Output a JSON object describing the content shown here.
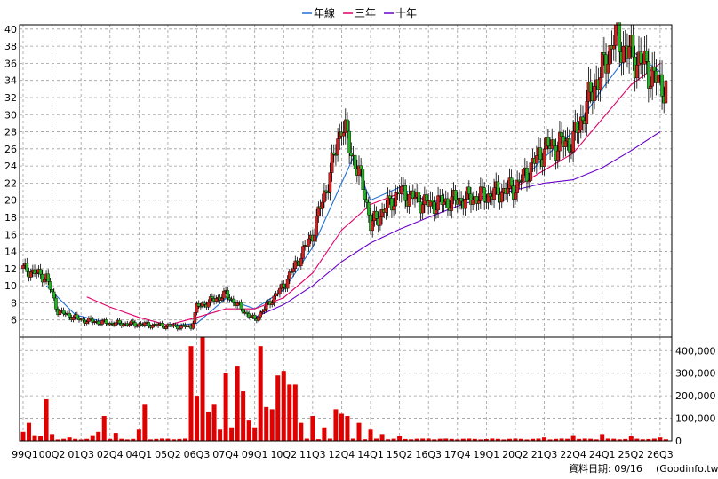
{
  "legend": [
    {
      "label": "年線",
      "color": "#1f6fd6"
    },
    {
      "label": "三年",
      "color": "#e0006a"
    },
    {
      "label": "十年",
      "color": "#6a00c8"
    }
  ],
  "footer": {
    "date_label": "資料日期: 09/16",
    "source": "(Goodinfo.tw)"
  },
  "colors": {
    "up": "#d21f1f",
    "down": "#22b422",
    "volume": "#e00000",
    "grid": "#9e9e9e",
    "frame": "#000000"
  },
  "chart_data": [
    {
      "type": "candlestick",
      "title": "",
      "x_tick_labels": [
        "99Q1",
        "00Q2",
        "01Q3",
        "02Q4",
        "04Q1",
        "05Q2",
        "06Q3",
        "07Q4",
        "09Q1",
        "10Q2",
        "11Q3",
        "12Q4",
        "14Q1",
        "15Q2",
        "16Q3",
        "17Q4",
        "19Q1",
        "20Q2",
        "21Q3",
        "22Q4",
        "24Q1",
        "25Q2",
        "26Q3"
      ],
      "y_ticks": [
        6,
        8,
        10,
        12,
        14,
        16,
        18,
        20,
        22,
        24,
        26,
        28,
        30,
        32,
        34,
        36,
        38,
        40
      ],
      "ylim": [
        4,
        40.5
      ],
      "grid": true,
      "legend_position": "top-center",
      "close_anchors": [
        {
          "x": "1999Q1",
          "close": 12
        },
        {
          "x": "2000Q1",
          "close": 11
        },
        {
          "x": "2000Q3",
          "close": 7
        },
        {
          "x": "2001Q3",
          "close": 6
        },
        {
          "x": "2002Q4",
          "close": 5.6
        },
        {
          "x": "2004Q1",
          "close": 5.5
        },
        {
          "x": "2005Q2",
          "close": 5.3
        },
        {
          "x": "2006Q2",
          "close": 5.2
        },
        {
          "x": "2006Q3",
          "close": 7.5
        },
        {
          "x": "2007Q4",
          "close": 9
        },
        {
          "x": "2008Q4",
          "close": 6.5
        },
        {
          "x": "2009Q1",
          "close": 6
        },
        {
          "x": "2010Q2",
          "close": 10
        },
        {
          "x": "2011Q3",
          "close": 16
        },
        {
          "x": "2012Q2",
          "close": 23
        },
        {
          "x": "2012Q4",
          "close": 29
        },
        {
          "x": "2013Q4",
          "close": 21
        },
        {
          "x": "2014Q1",
          "close": 17
        },
        {
          "x": "2015Q2",
          "close": 21
        },
        {
          "x": "2016Q3",
          "close": 19.5
        },
        {
          "x": "2017Q4",
          "close": 20
        },
        {
          "x": "2019Q1",
          "close": 20.5
        },
        {
          "x": "2020Q2",
          "close": 21.5
        },
        {
          "x": "2021Q3",
          "close": 26
        },
        {
          "x": "2022Q4",
          "close": 27
        },
        {
          "x": "2023Q4",
          "close": 34
        },
        {
          "x": "2024Q1",
          "close": 35
        },
        {
          "x": "2024Q3",
          "close": 39
        },
        {
          "x": "2025Q2",
          "close": 37
        },
        {
          "x": "2025Q4",
          "close": 36
        },
        {
          "x": "2026Q3",
          "close": 33.5
        }
      ],
      "moving_averages": [
        {
          "name": "年線",
          "points": [
            {
              "x": "2000Q1",
              "value": 10
            },
            {
              "x": "2001Q2",
              "value": 6.6
            },
            {
              "x": "2002Q4",
              "value": 5.6
            },
            {
              "x": "2005Q2",
              "value": 5.3
            },
            {
              "x": "2006Q3",
              "value": 5.6
            },
            {
              "x": "2007Q4",
              "value": 8.5
            },
            {
              "x": "2009Q1",
              "value": 7.3
            },
            {
              "x": "2010Q2",
              "value": 9.5
            },
            {
              "x": "2011Q3",
              "value": 14.5
            },
            {
              "x": "2012Q4",
              "value": 22
            },
            {
              "x": "2013Q2",
              "value": 25
            },
            {
              "x": "2014Q1",
              "value": 20
            },
            {
              "x": "2015Q2",
              "value": 21.5
            },
            {
              "x": "2016Q3",
              "value": 19.8
            },
            {
              "x": "2017Q4",
              "value": 20
            },
            {
              "x": "2019Q1",
              "value": 20.5
            },
            {
              "x": "2020Q2",
              "value": 21.5
            },
            {
              "x": "2021Q3",
              "value": 25
            },
            {
              "x": "2022Q4",
              "value": 28
            },
            {
              "x": "2024Q1",
              "value": 33
            },
            {
              "x": "2025Q2",
              "value": 37.5
            },
            {
              "x": "2026Q3",
              "value": 35
            }
          ]
        },
        {
          "name": "三年",
          "points": [
            {
              "x": "2001Q4",
              "value": 8.7
            },
            {
              "x": "2002Q4",
              "value": 7.5
            },
            {
              "x": "2004Q1",
              "value": 6.3
            },
            {
              "x": "2005Q2",
              "value": 5.4
            },
            {
              "x": "2006Q3",
              "value": 6.3
            },
            {
              "x": "2007Q4",
              "value": 7.3
            },
            {
              "x": "2009Q1",
              "value": 7.3
            },
            {
              "x": "2010Q2",
              "value": 8.6
            },
            {
              "x": "2011Q3",
              "value": 11.5
            },
            {
              "x": "2012Q4",
              "value": 16.5
            },
            {
              "x": "2014Q1",
              "value": 19.5
            },
            {
              "x": "2015Q2",
              "value": 20.8
            },
            {
              "x": "2016Q3",
              "value": 20
            },
            {
              "x": "2017Q4",
              "value": 20
            },
            {
              "x": "2019Q1",
              "value": 20.5
            },
            {
              "x": "2020Q2",
              "value": 21.5
            },
            {
              "x": "2021Q3",
              "value": 23.5
            },
            {
              "x": "2022Q4",
              "value": 25.5
            },
            {
              "x": "2024Q1",
              "value": 29.5
            },
            {
              "x": "2025Q2",
              "value": 33.5
            },
            {
              "x": "2026Q3",
              "value": 36
            }
          ]
        },
        {
          "name": "十年",
          "points": [
            {
              "x": "2009Q1",
              "value": 6.3
            },
            {
              "x": "2010Q2",
              "value": 7.8
            },
            {
              "x": "2011Q3",
              "value": 10
            },
            {
              "x": "2012Q4",
              "value": 12.8
            },
            {
              "x": "2014Q1",
              "value": 15
            },
            {
              "x": "2015Q2",
              "value": 16.6
            },
            {
              "x": "2016Q3",
              "value": 18
            },
            {
              "x": "2017Q4",
              "value": 19.3
            },
            {
              "x": "2019Q1",
              "value": 20.4
            },
            {
              "x": "2020Q2",
              "value": 21.2
            },
            {
              "x": "2021Q3",
              "value": 22
            },
            {
              "x": "2022Q4",
              "value": 22.4
            },
            {
              "x": "2024Q1",
              "value": 23.8
            },
            {
              "x": "2025Q2",
              "value": 25.8
            },
            {
              "x": "2026Q3",
              "value": 28
            }
          ]
        }
      ]
    },
    {
      "type": "bar",
      "title": "",
      "y_ticks": [
        "0",
        "100,000",
        "200,000",
        "300,000",
        "400,000"
      ],
      "y_tick_values": [
        0,
        100000,
        200000,
        300000,
        400000
      ],
      "ylim": [
        0,
        460000
      ],
      "volume_anchors": [
        {
          "x": "1999Q1",
          "value": 40000
        },
        {
          "x": "1999Q2",
          "value": 80000
        },
        {
          "x": "1999Q3",
          "value": 25000
        },
        {
          "x": "1999Q4",
          "value": 20000
        },
        {
          "x": "2000Q1",
          "value": 185000
        },
        {
          "x": "2000Q2",
          "value": 30000
        },
        {
          "x": "2001Q1",
          "value": 15000
        },
        {
          "x": "2002Q1",
          "value": 25000
        },
        {
          "x": "2002Q2",
          "value": 40000
        },
        {
          "x": "2002Q3",
          "value": 110000
        },
        {
          "x": "2003Q1",
          "value": 35000
        },
        {
          "x": "2004Q1",
          "value": 50000
        },
        {
          "x": "2004Q2",
          "value": 160000
        },
        {
          "x": "2005Q1",
          "value": 10000
        },
        {
          "x": "2006Q2",
          "value": 420000
        },
        {
          "x": "2006Q3",
          "value": 200000
        },
        {
          "x": "2006Q4",
          "value": 460000
        },
        {
          "x": "2007Q1",
          "value": 130000
        },
        {
          "x": "2007Q2",
          "value": 160000
        },
        {
          "x": "2007Q3",
          "value": 50000
        },
        {
          "x": "2007Q4",
          "value": 300000
        },
        {
          "x": "2008Q1",
          "value": 60000
        },
        {
          "x": "2008Q2",
          "value": 330000
        },
        {
          "x": "2008Q3",
          "value": 220000
        },
        {
          "x": "2008Q4",
          "value": 90000
        },
        {
          "x": "2009Q1",
          "value": 60000
        },
        {
          "x": "2009Q2",
          "value": 420000
        },
        {
          "x": "2009Q3",
          "value": 150000
        },
        {
          "x": "2009Q4",
          "value": 140000
        },
        {
          "x": "2010Q1",
          "value": 290000
        },
        {
          "x": "2010Q2",
          "value": 310000
        },
        {
          "x": "2010Q3",
          "value": 250000
        },
        {
          "x": "2010Q4",
          "value": 250000
        },
        {
          "x": "2011Q1",
          "value": 80000
        },
        {
          "x": "2011Q3",
          "value": 110000
        },
        {
          "x": "2012Q1",
          "value": 60000
        },
        {
          "x": "2012Q3",
          "value": 140000
        },
        {
          "x": "2012Q4",
          "value": 120000
        },
        {
          "x": "2013Q1",
          "value": 110000
        },
        {
          "x": "2013Q3",
          "value": 80000
        },
        {
          "x": "2014Q1",
          "value": 50000
        },
        {
          "x": "2014Q3",
          "value": 30000
        },
        {
          "x": "2015Q2",
          "value": 20000
        },
        {
          "x": "2016Q3",
          "value": 10000
        },
        {
          "x": "2019Q1",
          "value": 8000
        },
        {
          "x": "2021Q3",
          "value": 15000
        },
        {
          "x": "2022Q4",
          "value": 25000
        },
        {
          "x": "2024Q1",
          "value": 30000
        },
        {
          "x": "2025Q2",
          "value": 20000
        },
        {
          "x": "2026Q3",
          "value": 15000
        }
      ]
    }
  ]
}
